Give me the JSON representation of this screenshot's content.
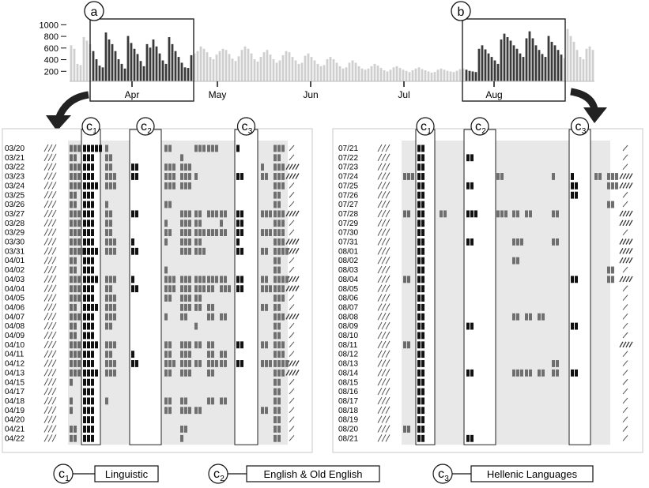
{
  "overview": {
    "yticks": [
      "1000",
      "800",
      "600",
      "400",
      "200"
    ],
    "months": [
      "Apr",
      "May",
      "Jun",
      "Jul",
      "Aug"
    ],
    "callouts": [
      "a",
      "b"
    ],
    "colors": {
      "highlight": "#3a3a3a",
      "context": "#cfcfcf"
    }
  },
  "chart_data": {
    "type": "bar",
    "yticks": [
      200,
      400,
      600,
      800,
      1000
    ],
    "ylim": [
      0,
      1100
    ],
    "range_a": [
      "03/20",
      "04/22"
    ],
    "range_b": [
      "07/21",
      "08/21"
    ],
    "values": [
      620,
      560,
      300,
      280,
      760,
      700,
      640,
      520,
      380,
      270,
      240,
      840,
      720,
      640,
      520,
      380,
      300,
      220,
      780,
      660,
      560,
      470,
      350,
      260,
      640,
      580,
      720,
      600,
      480,
      360,
      300,
      760,
      640,
      520,
      420,
      320,
      240,
      230,
      450,
      480,
      520,
      600,
      560,
      500,
      420,
      380,
      460,
      520,
      560,
      540,
      470,
      390,
      350,
      430,
      540,
      600,
      560,
      480,
      380,
      340,
      420,
      500,
      540,
      460,
      380,
      320,
      360,
      450,
      520,
      500,
      420,
      360,
      300,
      320,
      440,
      480,
      420,
      360,
      300,
      260,
      280,
      380,
      420,
      380,
      320,
      260,
      220,
      240,
      320,
      360,
      320,
      260,
      220,
      200,
      220,
      260,
      300,
      270,
      230,
      190,
      170,
      200,
      240,
      260,
      230,
      200,
      180,
      160,
      190,
      220,
      240,
      210,
      190,
      170,
      150,
      160,
      200,
      220,
      200,
      180,
      170,
      160,
      180,
      210,
      220,
      200,
      180,
      170,
      160,
      560,
      620,
      550,
      480,
      420,
      360,
      300,
      720,
      820,
      760,
      700,
      620,
      560,
      480,
      420,
      740,
      860,
      740,
      620,
      540,
      470,
      420,
      780,
      680,
      620,
      540,
      460,
      400,
      900,
      780,
      680,
      540,
      420,
      380,
      560,
      600,
      540
    ]
  },
  "left_panel": {
    "dates": [
      "03/20",
      "03/21",
      "03/22",
      "03/23",
      "03/24",
      "03/25",
      "03/26",
      "03/27",
      "03/28",
      "03/29",
      "03/30",
      "03/31",
      "04/01",
      "04/02",
      "04/03",
      "04/04",
      "04/05",
      "04/06",
      "04/07",
      "04/08",
      "04/09",
      "04/10",
      "04/11",
      "04/12",
      "04/13",
      "04/15",
      "04/17",
      "04/18",
      "04/19",
      "04/20",
      "04/21",
      "04/22"
    ],
    "cols": [
      "c1",
      "c2",
      "c3"
    ],
    "matrix": [
      [
        3,
        5,
        1,
        0,
        2,
        0,
        3,
        3,
        0,
        1,
        0,
        3,
        0,
        0
      ],
      [
        2,
        3,
        2,
        0,
        0,
        1,
        0,
        0,
        0,
        0,
        0,
        2,
        0,
        0
      ],
      [
        3,
        3,
        2,
        2,
        3,
        3,
        0,
        0,
        0,
        0,
        1,
        3,
        0,
        1
      ],
      [
        3,
        3,
        3,
        2,
        3,
        3,
        1,
        0,
        0,
        2,
        2,
        3,
        2,
        2
      ],
      [
        3,
        4,
        3,
        0,
        3,
        3,
        0,
        0,
        0,
        0,
        0,
        3,
        0,
        0
      ],
      [
        2,
        3,
        0,
        0,
        0,
        0,
        0,
        0,
        0,
        0,
        0,
        2,
        0,
        0
      ],
      [
        2,
        3,
        1,
        0,
        2,
        0,
        0,
        0,
        0,
        0,
        0,
        2,
        0,
        0
      ],
      [
        3,
        3,
        2,
        2,
        0,
        3,
        2,
        3,
        2,
        2,
        3,
        3,
        2,
        2
      ],
      [
        3,
        3,
        2,
        0,
        1,
        3,
        2,
        0,
        1,
        2,
        0,
        3,
        0,
        0
      ],
      [
        3,
        3,
        2,
        0,
        2,
        3,
        3,
        3,
        2,
        2,
        3,
        3,
        0,
        0
      ],
      [
        3,
        3,
        3,
        1,
        1,
        3,
        2,
        0,
        0,
        1,
        0,
        3,
        2,
        2
      ],
      [
        4,
        4,
        3,
        2,
        0,
        3,
        3,
        0,
        0,
        2,
        2,
        4,
        2,
        2
      ],
      [
        2,
        3,
        0,
        0,
        0,
        0,
        0,
        0,
        0,
        0,
        0,
        2,
        0,
        0
      ],
      [
        2,
        3,
        0,
        0,
        1,
        0,
        0,
        0,
        0,
        0,
        0,
        2,
        0,
        0
      ],
      [
        3,
        4,
        3,
        1,
        3,
        3,
        3,
        3,
        2,
        2,
        2,
        4,
        2,
        2
      ],
      [
        3,
        3,
        2,
        2,
        3,
        3,
        3,
        2,
        3,
        2,
        3,
        3,
        2,
        2
      ],
      [
        3,
        3,
        3,
        0,
        2,
        3,
        2,
        0,
        0,
        0,
        0,
        3,
        0,
        0
      ],
      [
        2,
        4,
        3,
        0,
        0,
        3,
        2,
        2,
        0,
        0,
        2,
        2,
        0,
        0
      ],
      [
        3,
        3,
        3,
        0,
        1,
        2,
        0,
        2,
        2,
        0,
        0,
        3,
        2,
        2
      ],
      [
        2,
        3,
        2,
        0,
        0,
        0,
        1,
        0,
        0,
        0,
        0,
        2,
        0,
        0
      ],
      [
        2,
        3,
        0,
        0,
        0,
        0,
        0,
        0,
        0,
        0,
        0,
        2,
        0,
        0
      ],
      [
        3,
        4,
        3,
        0,
        2,
        3,
        2,
        2,
        0,
        2,
        2,
        3,
        0,
        0
      ],
      [
        3,
        3,
        2,
        1,
        2,
        3,
        0,
        2,
        2,
        0,
        0,
        3,
        0,
        0
      ],
      [
        3,
        3,
        3,
        2,
        3,
        3,
        2,
        3,
        2,
        2,
        3,
        4,
        2,
        2
      ],
      [
        3,
        4,
        3,
        0,
        2,
        3,
        0,
        2,
        0,
        0,
        0,
        3,
        2,
        2
      ],
      [
        1,
        3,
        0,
        0,
        0,
        0,
        0,
        0,
        0,
        0,
        0,
        2,
        0,
        0
      ],
      [
        0,
        3,
        0,
        0,
        0,
        0,
        0,
        0,
        0,
        0,
        0,
        2,
        0,
        0
      ],
      [
        1,
        3,
        1,
        0,
        2,
        2,
        0,
        2,
        2,
        0,
        0,
        2,
        0,
        0
      ],
      [
        1,
        3,
        0,
        0,
        2,
        3,
        2,
        0,
        0,
        0,
        2,
        2,
        0,
        0
      ],
      [
        0,
        3,
        0,
        0,
        0,
        0,
        0,
        0,
        0,
        0,
        0,
        2,
        0,
        0
      ],
      [
        2,
        3,
        0,
        0,
        0,
        2,
        0,
        0,
        0,
        0,
        0,
        2,
        0,
        0
      ],
      [
        2,
        3,
        0,
        0,
        0,
        1,
        0,
        0,
        0,
        0,
        0,
        2,
        0,
        0
      ]
    ]
  },
  "right_panel": {
    "dates": [
      "07/21",
      "07/22",
      "07/23",
      "07/24",
      "07/25",
      "07/26",
      "07/27",
      "07/28",
      "07/29",
      "07/30",
      "07/31",
      "08/01",
      "08/02",
      "08/03",
      "08/04",
      "08/05",
      "08/06",
      "08/07",
      "08/08",
      "08/09",
      "08/10",
      "08/11",
      "08/12",
      "08/13",
      "08/14",
      "08/15",
      "08/16",
      "08/17",
      "08/18",
      "08/19",
      "08/20",
      "08/21"
    ],
    "cols": [
      "c1",
      "c2",
      "c3"
    ],
    "matrix": [
      [
        0,
        2,
        0,
        0,
        0,
        0,
        0,
        0,
        0,
        0,
        0,
        0,
        0,
        0
      ],
      [
        0,
        2,
        0,
        2,
        0,
        0,
        0,
        0,
        0,
        0,
        0,
        0,
        0,
        0
      ],
      [
        0,
        2,
        0,
        0,
        0,
        0,
        0,
        0,
        0,
        0,
        0,
        0,
        0,
        0
      ],
      [
        3,
        2,
        0,
        0,
        2,
        0,
        0,
        0,
        1,
        1,
        2,
        3,
        0,
        2
      ],
      [
        0,
        2,
        0,
        2,
        0,
        0,
        0,
        0,
        0,
        2,
        0,
        3,
        0,
        2
      ],
      [
        0,
        2,
        0,
        0,
        0,
        0,
        0,
        0,
        0,
        2,
        0,
        0,
        0,
        0
      ],
      [
        0,
        2,
        0,
        0,
        0,
        0,
        0,
        0,
        0,
        0,
        0,
        2,
        0,
        0
      ],
      [
        2,
        2,
        2,
        3,
        3,
        2,
        2,
        0,
        2,
        0,
        0,
        0,
        2,
        2
      ],
      [
        0,
        2,
        0,
        0,
        0,
        0,
        0,
        0,
        0,
        0,
        0,
        0,
        2,
        2
      ],
      [
        0,
        2,
        0,
        0,
        0,
        0,
        0,
        0,
        0,
        0,
        0,
        0,
        0,
        0
      ],
      [
        0,
        2,
        0,
        2,
        0,
        3,
        0,
        0,
        2,
        0,
        0,
        0,
        2,
        2
      ],
      [
        0,
        2,
        0,
        0,
        0,
        0,
        0,
        0,
        0,
        0,
        0,
        0,
        2,
        2
      ],
      [
        0,
        2,
        0,
        0,
        0,
        2,
        0,
        0,
        0,
        0,
        0,
        0,
        2,
        2
      ],
      [
        0,
        2,
        0,
        0,
        0,
        0,
        0,
        0,
        0,
        0,
        0,
        2,
        0,
        0
      ],
      [
        2,
        2,
        0,
        0,
        0,
        0,
        0,
        0,
        0,
        2,
        0,
        2,
        0,
        2
      ],
      [
        0,
        2,
        0,
        0,
        0,
        0,
        0,
        0,
        0,
        0,
        0,
        0,
        0,
        0
      ],
      [
        0,
        2,
        0,
        0,
        0,
        0,
        0,
        0,
        0,
        0,
        0,
        0,
        0,
        0
      ],
      [
        0,
        2,
        0,
        0,
        0,
        0,
        0,
        0,
        0,
        0,
        0,
        0,
        0,
        0
      ],
      [
        0,
        2,
        0,
        0,
        0,
        2,
        2,
        2,
        0,
        0,
        0,
        0,
        0,
        0
      ],
      [
        0,
        2,
        0,
        2,
        0,
        0,
        0,
        0,
        0,
        2,
        0,
        0,
        0,
        0
      ],
      [
        0,
        2,
        0,
        0,
        0,
        0,
        0,
        0,
        0,
        0,
        0,
        0,
        0,
        0
      ],
      [
        2,
        2,
        0,
        0,
        0,
        0,
        0,
        0,
        0,
        0,
        0,
        0,
        0,
        2
      ],
      [
        0,
        2,
        0,
        0,
        0,
        0,
        0,
        0,
        0,
        0,
        0,
        0,
        0,
        0
      ],
      [
        0,
        2,
        0,
        0,
        0,
        0,
        0,
        0,
        2,
        0,
        0,
        0,
        0,
        0
      ],
      [
        0,
        2,
        0,
        2,
        0,
        3,
        2,
        2,
        2,
        2,
        0,
        0,
        0,
        0
      ],
      [
        0,
        2,
        0,
        0,
        0,
        0,
        0,
        0,
        0,
        0,
        0,
        0,
        0,
        0
      ],
      [
        0,
        2,
        0,
        0,
        0,
        0,
        0,
        0,
        0,
        0,
        0,
        0,
        0,
        0
      ],
      [
        0,
        2,
        0,
        0,
        0,
        0,
        0,
        0,
        0,
        0,
        0,
        0,
        0,
        0
      ],
      [
        0,
        2,
        0,
        0,
        0,
        0,
        0,
        0,
        0,
        0,
        0,
        0,
        0,
        0
      ],
      [
        0,
        2,
        0,
        0,
        0,
        0,
        0,
        0,
        0,
        0,
        0,
        0,
        0,
        0
      ],
      [
        2,
        2,
        0,
        0,
        0,
        0,
        0,
        0,
        0,
        0,
        0,
        0,
        0,
        0
      ],
      [
        0,
        2,
        0,
        2,
        0,
        0,
        0,
        0,
        0,
        0,
        0,
        0,
        0,
        0
      ]
    ]
  },
  "legend": [
    {
      "key": "c1",
      "label": "Linguistic"
    },
    {
      "key": "c2",
      "label": "English & Old English"
    },
    {
      "key": "c3",
      "label": "Hellenic Languages"
    }
  ]
}
